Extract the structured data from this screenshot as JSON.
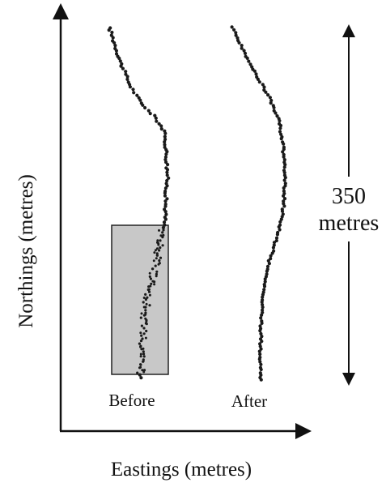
{
  "diagram": {
    "x_axis_label": "Eastings (metres)",
    "y_axis_label": "Northings (metres)",
    "tracks": [
      {
        "label": "Before",
        "style": "jittery"
      },
      {
        "label": "After",
        "style": "smooth"
      }
    ],
    "scale_bar": {
      "value": "350",
      "unit": "metres"
    },
    "colors": {
      "axes": "#111111",
      "points": "#1a1a1a",
      "highlight_fill": "#c8c8c8",
      "highlight_stroke": "#222222"
    }
  }
}
